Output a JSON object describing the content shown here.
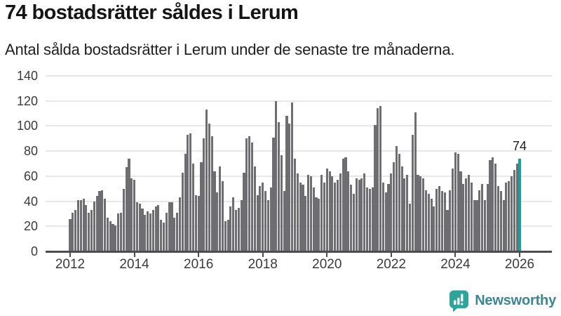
{
  "header": {
    "title": "74 bostadsrätter såldes i Lerum",
    "subtitle": "Antal sålda bostadsrätter i Lerum under de senaste tre månaderna."
  },
  "chart_data": {
    "type": "bar",
    "title": "74 bostadsrätter såldes i Lerum",
    "subtitle": "Antal sålda bostadsrätter i Lerum under de senaste tre månaderna.",
    "interval": "monthly",
    "x_start_year": 2012,
    "x_end_year": 2026,
    "ylim": [
      0,
      140
    ],
    "y_ticks": [
      0,
      20,
      40,
      60,
      80,
      100,
      120,
      140
    ],
    "x_ticks": [
      2012,
      2014,
      2016,
      2018,
      2020,
      2022,
      2024,
      2026
    ],
    "grid": true,
    "values": [
      26,
      31,
      33,
      41,
      41,
      42,
      37,
      31,
      33,
      40,
      44,
      48,
      49,
      42,
      27,
      24,
      22,
      21,
      30,
      31,
      50,
      67,
      74,
      58,
      57,
      39,
      38,
      34,
      29,
      32,
      30,
      33,
      36,
      37,
      25,
      23,
      31,
      39,
      39,
      27,
      31,
      43,
      63,
      78,
      93,
      94,
      70,
      45,
      44,
      71,
      90,
      113,
      102,
      92,
      64,
      47,
      68,
      56,
      24,
      25,
      36,
      43,
      33,
      35,
      41,
      63,
      90,
      92,
      87,
      68,
      45,
      52,
      55,
      48,
      41,
      51,
      91,
      120,
      103,
      77,
      48,
      108,
      102,
      119,
      74,
      62,
      55,
      53,
      44,
      61,
      60,
      51,
      43,
      42,
      61,
      55,
      66,
      64,
      60,
      55,
      57,
      62,
      74,
      75,
      64,
      53,
      46,
      58,
      57,
      58,
      62,
      51,
      50,
      51,
      101,
      114,
      116,
      55,
      47,
      54,
      62,
      71,
      84,
      78,
      68,
      58,
      61,
      38,
      93,
      111,
      61,
      60,
      58,
      49,
      46,
      42,
      36,
      50,
      52,
      48,
      47,
      33,
      49,
      66,
      79,
      78,
      64,
      54,
      58,
      61,
      55,
      41,
      41,
      49,
      54,
      41,
      54,
      73,
      75,
      70,
      52,
      48,
      41,
      55,
      56,
      60,
      65,
      70,
      74
    ],
    "highlight_last": true,
    "annotation_label": "74",
    "colors": {
      "bar": "#6d6d72",
      "highlight": "#13a29b",
      "grid": "#e7e7e7",
      "axis": "#4d4d4d",
      "label": "#3b3b3b"
    }
  },
  "footer": {
    "brand": "Newsworthy",
    "brand_color": "#2fa49b",
    "brand_text_color": "#3e8492"
  }
}
